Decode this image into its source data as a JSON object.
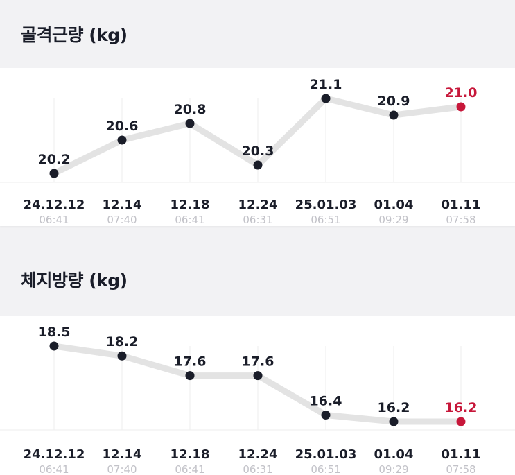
{
  "sections": [
    {
      "title": "골격근량 (kg)"
    },
    {
      "title": "체지방량 (kg)"
    }
  ],
  "colors": {
    "line": "#e3e3e3",
    "point": "#1a1d29",
    "highlight": "#c7173a",
    "grid": "#eeeeee"
  },
  "chart_data": [
    {
      "type": "line",
      "title": "골격근량 (kg)",
      "categories": [
        "24.12.12",
        "12.14",
        "12.18",
        "12.24",
        "25.01.03",
        "01.04",
        "01.11"
      ],
      "times": [
        "06:41",
        "07:40",
        "06:41",
        "06:31",
        "06:51",
        "09:29",
        "07:58"
      ],
      "values": [
        20.2,
        20.6,
        20.8,
        20.3,
        21.1,
        20.9,
        21.0
      ],
      "value_labels": [
        "20.2",
        "20.6",
        "20.8",
        "20.3",
        "21.1",
        "20.9",
        "21.0"
      ],
      "highlight_index": 6
    },
    {
      "type": "line",
      "title": "체지방량 (kg)",
      "categories": [
        "24.12.12",
        "12.14",
        "12.18",
        "12.24",
        "25.01.03",
        "01.04",
        "01.11"
      ],
      "times": [
        "06:41",
        "07:40",
        "06:41",
        "06:31",
        "06:51",
        "09:29",
        "07:58"
      ],
      "values": [
        18.5,
        18.2,
        17.6,
        17.6,
        16.4,
        16.2,
        16.2
      ],
      "value_labels": [
        "18.5",
        "18.2",
        "17.6",
        "17.6",
        "16.4",
        "16.2",
        "16.2"
      ],
      "highlight_index": 6
    }
  ]
}
